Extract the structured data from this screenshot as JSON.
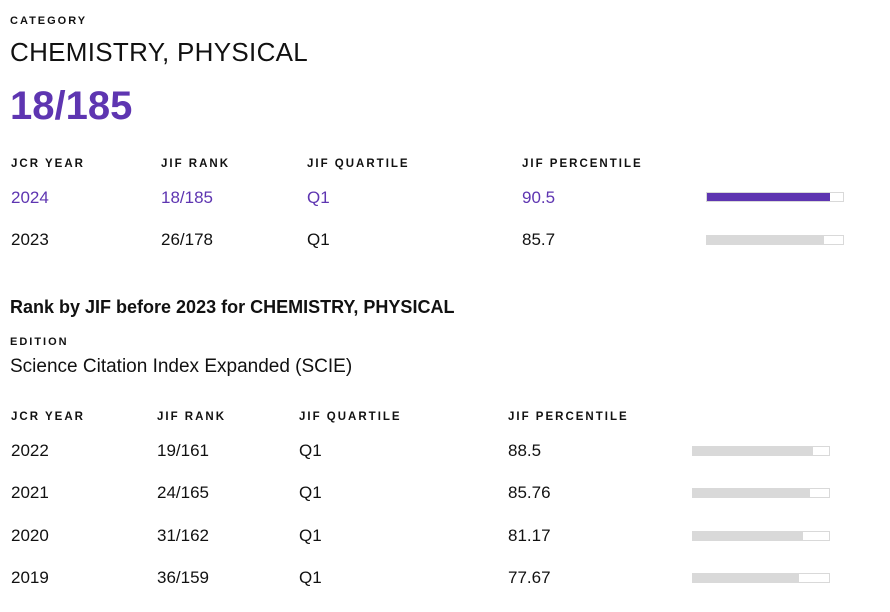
{
  "category_label": "CATEGORY",
  "category_name": "CHEMISTRY, PHYSICAL",
  "current_rank": "18/185",
  "table1": {
    "headers": [
      "JCR YEAR",
      "JIF RANK",
      "JIF QUARTILE",
      "JIF PERCENTILE"
    ],
    "rows": [
      {
        "year": "2024",
        "rank": "18/185",
        "quartile": "Q1",
        "percentile": "90.5",
        "fraction": 0.905,
        "highlight": true
      },
      {
        "year": "2023",
        "rank": "26/178",
        "quartile": "Q1",
        "percentile": "85.7",
        "fraction": 0.857,
        "highlight": false
      }
    ]
  },
  "section2": {
    "heading": "Rank by JIF before 2023 for CHEMISTRY, PHYSICAL",
    "edition_label": "EDITION",
    "edition_value": "Science Citation Index Expanded (SCIE)"
  },
  "table2": {
    "headers": [
      "JCR YEAR",
      "JIF RANK",
      "JIF QUARTILE",
      "JIF PERCENTILE"
    ],
    "rows": [
      {
        "year": "2022",
        "rank": "19/161",
        "quartile": "Q1",
        "percentile": "88.5",
        "fraction": 0.885
      },
      {
        "year": "2021",
        "rank": "24/165",
        "quartile": "Q1",
        "percentile": "85.76",
        "fraction": 0.8576
      },
      {
        "year": "2020",
        "rank": "31/162",
        "quartile": "Q1",
        "percentile": "81.17",
        "fraction": 0.8117
      },
      {
        "year": "2019",
        "rank": "36/159",
        "quartile": "Q1",
        "percentile": "77.67",
        "fraction": 0.7767
      }
    ]
  },
  "colors": {
    "accent": "#5e35b1",
    "bar_gray": "#d9d9d9"
  }
}
